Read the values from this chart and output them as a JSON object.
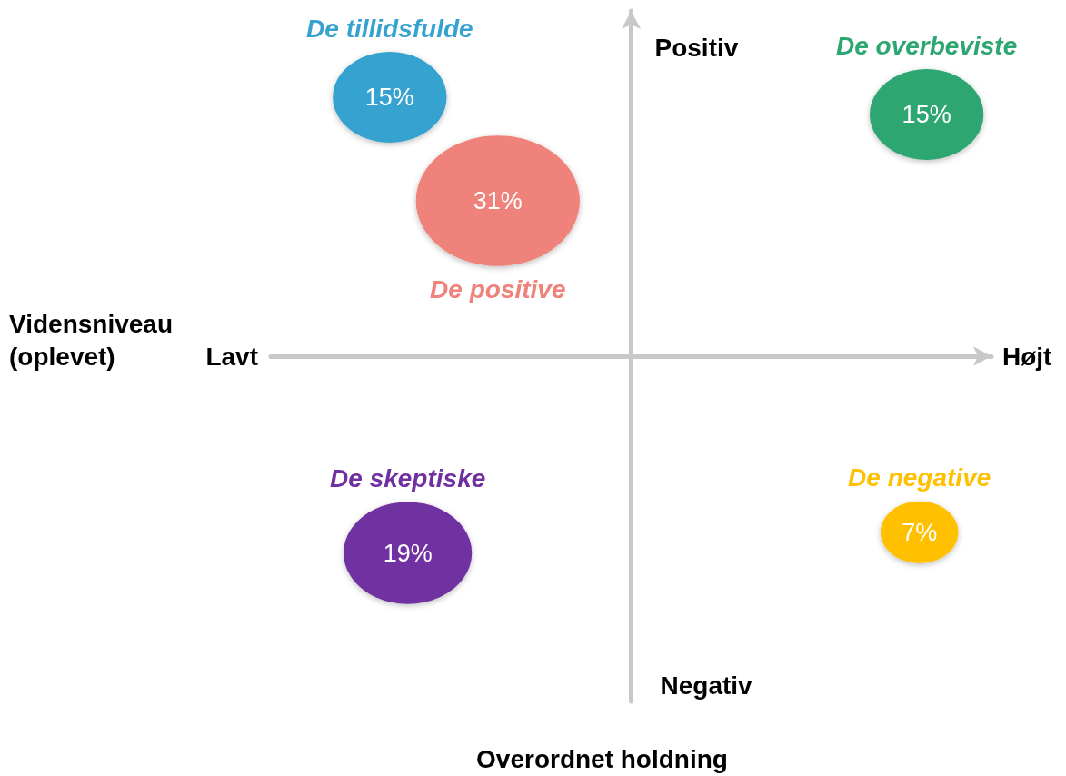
{
  "chart_data": {
    "type": "other",
    "xlabel": "Vidensniveau (oplevet)",
    "ylabel": "Overordnet holdning",
    "annotations": [
      "Lavt",
      "Højt",
      "Positiv",
      "Negativ"
    ],
    "series": [
      {
        "name": "De tillidsfulde",
        "color": "#36a2d0",
        "values": [
          15
        ],
        "value_labels": [
          "15%"
        ]
      },
      {
        "name": "De positive",
        "color": "#ef827a",
        "values": [
          31
        ],
        "value_labels": [
          "31%"
        ]
      },
      {
        "name": "De overbeviste",
        "color": "#2ea672",
        "values": [
          15
        ],
        "value_labels": [
          "15%"
        ]
      },
      {
        "name": "De skeptiske",
        "color": "#7030a0",
        "values": [
          19
        ],
        "value_labels": [
          "19%"
        ]
      },
      {
        "name": "De negative",
        "color": "#ffc000",
        "values": [
          7
        ],
        "value_labels": [
          "7%"
        ]
      }
    ]
  }
}
